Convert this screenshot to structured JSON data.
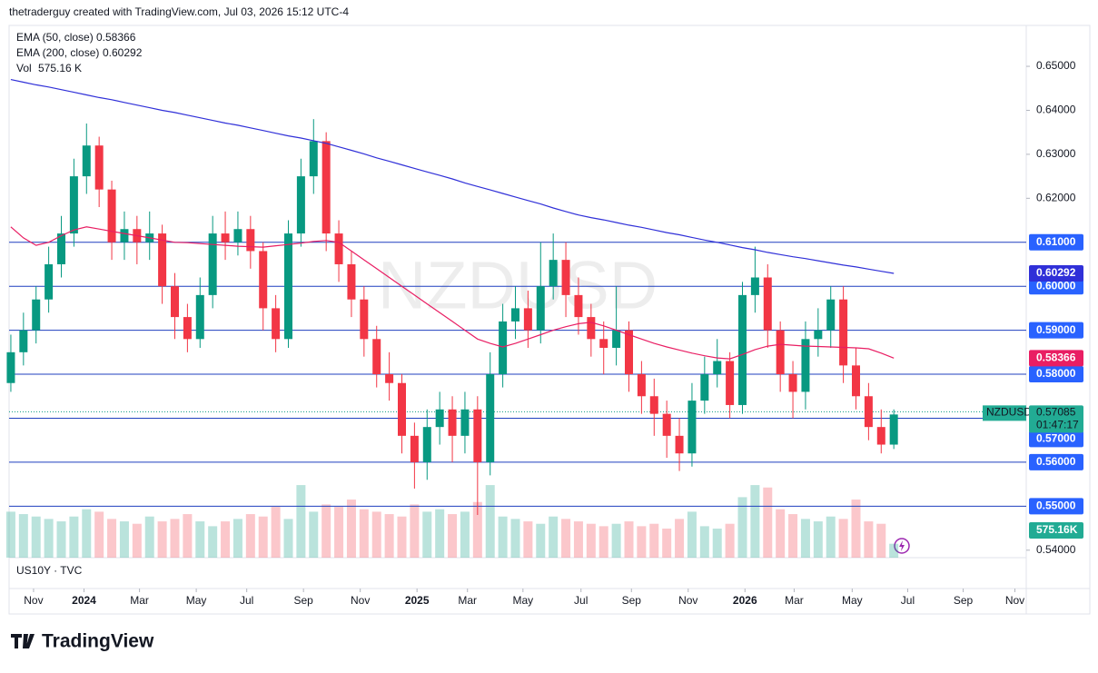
{
  "header": {
    "credit": "thetraderguy created with TradingView.com, Jul 03, 2026 15:12 UTC-4"
  },
  "legend": [
    {
      "name": "EMA (50, close)",
      "value": "0.58366",
      "color": "#f23645"
    },
    {
      "name": "EMA (200, close)",
      "value": "0.60292",
      "color": "#2962ff"
    },
    {
      "name": "Vol",
      "value": "575.16 K",
      "color": "#22ab94"
    }
  ],
  "watermark": "NZDUSD",
  "lower_pane": "US10Y · TVC",
  "footer": {
    "brand": "TradingView"
  },
  "chart_data": {
    "type": "candlestick",
    "symbol": "NZDUSD",
    "up_color": "#089981",
    "down_color": "#f23645",
    "candles": [
      [
        0.578,
        0.589,
        0.576,
        0.585
      ],
      [
        0.585,
        0.594,
        0.582,
        0.59
      ],
      [
        0.59,
        0.6,
        0.587,
        0.597
      ],
      [
        0.597,
        0.609,
        0.594,
        0.605
      ],
      [
        0.605,
        0.616,
        0.602,
        0.612
      ],
      [
        0.612,
        0.629,
        0.609,
        0.625
      ],
      [
        0.625,
        0.637,
        0.621,
        0.632
      ],
      [
        0.632,
        0.634,
        0.618,
        0.622
      ],
      [
        0.622,
        0.624,
        0.606,
        0.61
      ],
      [
        0.61,
        0.617,
        0.606,
        0.613
      ],
      [
        0.613,
        0.616,
        0.605,
        0.61
      ],
      [
        0.61,
        0.617,
        0.606,
        0.612
      ],
      [
        0.612,
        0.614,
        0.596,
        0.6
      ],
      [
        0.6,
        0.603,
        0.588,
        0.593
      ],
      [
        0.593,
        0.596,
        0.585,
        0.588
      ],
      [
        0.588,
        0.602,
        0.586,
        0.598
      ],
      [
        0.598,
        0.616,
        0.595,
        0.612
      ],
      [
        0.612,
        0.617,
        0.606,
        0.61
      ],
      [
        0.61,
        0.617,
        0.607,
        0.613
      ],
      [
        0.613,
        0.616,
        0.604,
        0.608
      ],
      [
        0.608,
        0.61,
        0.59,
        0.595
      ],
      [
        0.595,
        0.598,
        0.585,
        0.588
      ],
      [
        0.588,
        0.615,
        0.586,
        0.612
      ],
      [
        0.612,
        0.629,
        0.609,
        0.625
      ],
      [
        0.625,
        0.638,
        0.621,
        0.633
      ],
      [
        0.633,
        0.635,
        0.608,
        0.612
      ],
      [
        0.612,
        0.615,
        0.601,
        0.605
      ],
      [
        0.605,
        0.608,
        0.593,
        0.597
      ],
      [
        0.597,
        0.6,
        0.584,
        0.588
      ],
      [
        0.588,
        0.591,
        0.577,
        0.58
      ],
      [
        0.58,
        0.585,
        0.574,
        0.578
      ],
      [
        0.578,
        0.58,
        0.562,
        0.566
      ],
      [
        0.566,
        0.569,
        0.554,
        0.56
      ],
      [
        0.56,
        0.572,
        0.556,
        0.568
      ],
      [
        0.568,
        0.576,
        0.564,
        0.572
      ],
      [
        0.572,
        0.575,
        0.56,
        0.566
      ],
      [
        0.566,
        0.576,
        0.562,
        0.572
      ],
      [
        0.572,
        0.575,
        0.548,
        0.56
      ],
      [
        0.56,
        0.585,
        0.557,
        0.58
      ],
      [
        0.58,
        0.596,
        0.577,
        0.592
      ],
      [
        0.592,
        0.6,
        0.588,
        0.595
      ],
      [
        0.595,
        0.599,
        0.586,
        0.59
      ],
      [
        0.59,
        0.61,
        0.587,
        0.6
      ],
      [
        0.6,
        0.612,
        0.597,
        0.606
      ],
      [
        0.606,
        0.61,
        0.593,
        0.598
      ],
      [
        0.598,
        0.602,
        0.589,
        0.593
      ],
      [
        0.593,
        0.596,
        0.584,
        0.588
      ],
      [
        0.588,
        0.592,
        0.58,
        0.586
      ],
      [
        0.586,
        0.6,
        0.582,
        0.59
      ],
      [
        0.59,
        0.592,
        0.576,
        0.58
      ],
      [
        0.58,
        0.583,
        0.571,
        0.575
      ],
      [
        0.575,
        0.579,
        0.566,
        0.571
      ],
      [
        0.571,
        0.574,
        0.561,
        0.566
      ],
      [
        0.566,
        0.57,
        0.558,
        0.562
      ],
      [
        0.562,
        0.578,
        0.559,
        0.574
      ],
      [
        0.574,
        0.584,
        0.571,
        0.58
      ],
      [
        0.58,
        0.588,
        0.577,
        0.583
      ],
      [
        0.583,
        0.585,
        0.57,
        0.573
      ],
      [
        0.573,
        0.601,
        0.571,
        0.598
      ],
      [
        0.598,
        0.609,
        0.594,
        0.602
      ],
      [
        0.602,
        0.605,
        0.586,
        0.59
      ],
      [
        0.59,
        0.592,
        0.576,
        0.58
      ],
      [
        0.58,
        0.583,
        0.57,
        0.576
      ],
      [
        0.576,
        0.592,
        0.572,
        0.588
      ],
      [
        0.588,
        0.595,
        0.584,
        0.59
      ],
      [
        0.59,
        0.6,
        0.586,
        0.597
      ],
      [
        0.597,
        0.6,
        0.578,
        0.582
      ],
      [
        0.582,
        0.586,
        0.572,
        0.575
      ],
      [
        0.575,
        0.578,
        0.565,
        0.568
      ],
      [
        0.568,
        0.572,
        0.562,
        0.564
      ],
      [
        0.564,
        0.572,
        0.563,
        0.57085
      ]
    ],
    "volume": [
      1900,
      1800,
      1700,
      1600,
      1500,
      1700,
      2000,
      1900,
      1600,
      1500,
      1400,
      1700,
      1500,
      1600,
      1800,
      1500,
      1300,
      1500,
      1600,
      1800,
      1700,
      2100,
      1600,
      3000,
      1900,
      2200,
      2100,
      2400,
      2000,
      1900,
      1800,
      1700,
      2200,
      1900,
      2000,
      1800,
      1900,
      2300,
      3000,
      1700,
      1600,
      1500,
      1400,
      1700,
      1600,
      1500,
      1400,
      1300,
      1400,
      1500,
      1300,
      1400,
      1200,
      1600,
      1900,
      1300,
      1200,
      1400,
      2500,
      3000,
      2900,
      2000,
      1800,
      1600,
      1500,
      1700,
      1600,
      2400,
      1500,
      1400,
      575.16
    ],
    "volume_lim": [
      0,
      22000
    ],
    "volume_label": "575.16K",
    "ema50": {
      "color": "#e91e63",
      "last": 0.58366,
      "values": [
        0.6135,
        0.611,
        0.6093,
        0.61,
        0.6115,
        0.6128,
        0.6135,
        0.613,
        0.6125,
        0.612,
        0.6115,
        0.611,
        0.6105,
        0.61,
        0.6099,
        0.6097,
        0.6095,
        0.6093,
        0.6091,
        0.609,
        0.6089,
        0.6092,
        0.6095,
        0.6098,
        0.6102,
        0.6104,
        0.61,
        0.608,
        0.606,
        0.604,
        0.602,
        0.6,
        0.598,
        0.596,
        0.594,
        0.592,
        0.59,
        0.588,
        0.587,
        0.5862,
        0.587,
        0.588,
        0.589,
        0.59,
        0.5908,
        0.5915,
        0.5918,
        0.591,
        0.59,
        0.589,
        0.588,
        0.587,
        0.5862,
        0.5855,
        0.5848,
        0.5842,
        0.5837,
        0.5835,
        0.5845,
        0.5856,
        0.5864,
        0.5868,
        0.5866,
        0.5864,
        0.5863,
        0.5862,
        0.5861,
        0.586,
        0.5858,
        0.5848,
        0.58366
      ]
    },
    "ema200": {
      "color": "#3030d8",
      "last": 0.60292,
      "values": [
        0.647,
        0.6464,
        0.6458,
        0.6453,
        0.6447,
        0.6441,
        0.6435,
        0.6429,
        0.6424,
        0.6418,
        0.6412,
        0.6406,
        0.64,
        0.6395,
        0.6389,
        0.6383,
        0.6377,
        0.6371,
        0.6366,
        0.636,
        0.6354,
        0.6348,
        0.6342,
        0.6337,
        0.6331,
        0.6325,
        0.6317,
        0.6309,
        0.6301,
        0.6292,
        0.6284,
        0.6276,
        0.6268,
        0.626,
        0.6252,
        0.6244,
        0.6235,
        0.6227,
        0.6219,
        0.6211,
        0.6203,
        0.6195,
        0.6187,
        0.6178,
        0.617,
        0.6162,
        0.6156,
        0.6151,
        0.6145,
        0.6139,
        0.6134,
        0.6128,
        0.6122,
        0.6117,
        0.6111,
        0.6105,
        0.61,
        0.6094,
        0.6088,
        0.6083,
        0.6077,
        0.6072,
        0.6067,
        0.6063,
        0.6058,
        0.6053,
        0.6048,
        0.6044,
        0.6039,
        0.6034,
        0.60292
      ]
    },
    "last": {
      "price": 0.57085,
      "countdown": "01:47:17"
    },
    "hline_color": "#1f3fbf",
    "hlines": [
      0.61,
      0.6,
      0.59,
      0.58,
      0.57,
      0.56,
      0.55
    ],
    "ylim": [
      0.5383,
      0.6593
    ],
    "yticks": [
      {
        "value": 0.65,
        "label": "0.65000"
      },
      {
        "value": 0.64,
        "label": "0.64000"
      },
      {
        "value": 0.63,
        "label": "0.63000"
      },
      {
        "value": 0.62,
        "label": "0.62000"
      },
      {
        "value": 0.61,
        "label": "0.61000"
      },
      {
        "value": 0.6,
        "label": "0.60000"
      },
      {
        "value": 0.59,
        "label": "0.59000"
      },
      {
        "value": 0.58,
        "label": "0.58000"
      },
      {
        "value": 0.57,
        "label": "0.57000"
      },
      {
        "value": 0.56,
        "label": "0.56000"
      },
      {
        "value": 0.55,
        "label": "0.55000"
      },
      {
        "value": 0.54,
        "label": "0.54000"
      }
    ],
    "xlim": [
      -0.14,
      80.5
    ],
    "xticks": [
      {
        "value": 1.8,
        "label": "Nov"
      },
      {
        "value": 5.8,
        "label": "2024"
      },
      {
        "value": 10.2,
        "label": "Mar"
      },
      {
        "value": 14.7,
        "label": "May"
      },
      {
        "value": 18.7,
        "label": "Jul"
      },
      {
        "value": 23.2,
        "label": "Sep"
      },
      {
        "value": 27.7,
        "label": "Nov"
      },
      {
        "value": 32.2,
        "label": "2025"
      },
      {
        "value": 36.2,
        "label": "Mar"
      },
      {
        "value": 40.6,
        "label": "May"
      },
      {
        "value": 45.2,
        "label": "Jul"
      },
      {
        "value": 49.2,
        "label": "Sep"
      },
      {
        "value": 53.7,
        "label": "Nov"
      },
      {
        "value": 58.2,
        "label": "2026"
      },
      {
        "value": 62.1,
        "label": "Mar"
      },
      {
        "value": 66.7,
        "label": "May"
      },
      {
        "value": 71.1,
        "label": "Jul"
      },
      {
        "value": 75.5,
        "label": "Sep"
      },
      {
        "value": 79.6,
        "label": "Nov"
      }
    ]
  }
}
